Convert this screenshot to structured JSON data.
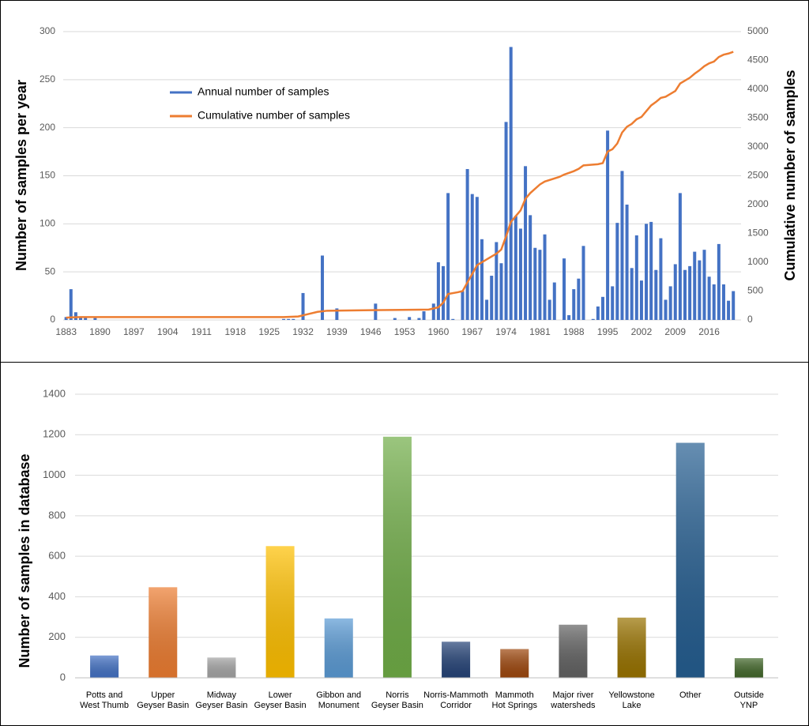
{
  "chart_data": [
    {
      "type": "bar",
      "legend": "upper left",
      "grid": true,
      "ylabel": "Number of samples per year",
      "y2label": "Cumulative number of samples",
      "xlim": [
        1882.4,
        2022.6
      ],
      "xticks": [
        1883,
        1890,
        1897,
        1904,
        1911,
        1918,
        1925,
        1932,
        1939,
        1946,
        1953,
        1960,
        1967,
        1974,
        1981,
        1988,
        1995,
        2002,
        2009,
        2016
      ],
      "ylim": [
        0,
        300
      ],
      "yticks": [
        0,
        50,
        100,
        150,
        200,
        250,
        300
      ],
      "y2lim": [
        0,
        5000
      ],
      "y2ticks": [
        0,
        500,
        1000,
        1500,
        2000,
        2500,
        3000,
        3500,
        4000,
        4500,
        5000
      ],
      "series": [
        {
          "name": "Annual number of samples",
          "type": "bar",
          "color": "#4472c4",
          "x": [
            1883,
            1884,
            1885,
            1886,
            1887,
            1889,
            1928,
            1929,
            1930,
            1932,
            1936,
            1939,
            1947,
            1951,
            1954,
            1956,
            1957,
            1959,
            1960,
            1961,
            1962,
            1963,
            1965,
            1966,
            1967,
            1968,
            1969,
            1970,
            1971,
            1972,
            1973,
            1974,
            1975,
            1976,
            1977,
            1978,
            1979,
            1980,
            1981,
            1982,
            1983,
            1984,
            1986,
            1987,
            1988,
            1989,
            1990,
            1992,
            1993,
            1994,
            1995,
            1996,
            1997,
            1998,
            1999,
            2000,
            2001,
            2002,
            2003,
            2004,
            2005,
            2006,
            2007,
            2008,
            2009,
            2010,
            2011,
            2012,
            2013,
            2014,
            2015,
            2016,
            2017,
            2018,
            2019,
            2020,
            2021
          ],
          "values": [
            3,
            32,
            8,
            3,
            3,
            2,
            1,
            1,
            1,
            28,
            67,
            12,
            17,
            2,
            3,
            2,
            9,
            17,
            60,
            56,
            132,
            1,
            30,
            157,
            131,
            128,
            84,
            21,
            46,
            81,
            59,
            206,
            284,
            108,
            95,
            160,
            109,
            75,
            73,
            89,
            21,
            39,
            64,
            5,
            32,
            43,
            77,
            1,
            14,
            24,
            197,
            35,
            101,
            155,
            120,
            54,
            88,
            41,
            100,
            102,
            52,
            85,
            21,
            35,
            58,
            132,
            52,
            56,
            71,
            62,
            73,
            45,
            37,
            79,
            37,
            20,
            30
          ]
        },
        {
          "name": "Cumulative number of samples",
          "type": "line",
          "color": "#ed7d31",
          "axis": "y2",
          "x": [
            1883,
            1884,
            1886,
            1890,
            1928,
            1931,
            1933,
            1935,
            1937,
            1946,
            1958,
            1960,
            1961,
            1962,
            1964,
            1965,
            1966,
            1967,
            1968,
            1970,
            1972,
            1973,
            1974,
            1975,
            1976,
            1977,
            1978,
            1979,
            1981,
            1982,
            1985,
            1986,
            1988,
            1989,
            1990,
            1993,
            1994,
            1995,
            1996,
            1997,
            1998,
            1999,
            2000,
            2001,
            2002,
            2003,
            2004,
            2005,
            2006,
            2007,
            2008,
            2009,
            2010,
            2012,
            2013,
            2014,
            2015,
            2016,
            2017,
            2018,
            2019,
            2020,
            2021
          ],
          "values": [
            40,
            45,
            50,
            50,
            50,
            60,
            100,
            140,
            160,
            170,
            180,
            220,
            300,
            450,
            480,
            500,
            650,
            800,
            950,
            1050,
            1150,
            1220,
            1450,
            1700,
            1800,
            1900,
            2100,
            2200,
            2350,
            2400,
            2480,
            2520,
            2580,
            2620,
            2680,
            2700,
            2720,
            2920,
            2960,
            3060,
            3250,
            3350,
            3400,
            3480,
            3520,
            3620,
            3720,
            3780,
            3850,
            3870,
            3920,
            3970,
            4100,
            4200,
            4270,
            4330,
            4400,
            4450,
            4480,
            4560,
            4600,
            4620,
            4650
          ]
        }
      ]
    },
    {
      "type": "bar",
      "grid": true,
      "ylabel": "Number of samples in database",
      "ylim": [
        0,
        1400
      ],
      "yticks": [
        0,
        200,
        400,
        600,
        800,
        1000,
        1200,
        1400
      ],
      "categories": [
        [
          "Potts and",
          "West Thumb"
        ],
        [
          "Upper",
          "Geyser Basin"
        ],
        [
          "Midway",
          "Geyser Basin"
        ],
        [
          "Lower",
          "Geyser Basin"
        ],
        [
          "Gibbon and",
          "Monument"
        ],
        [
          "Norris",
          "Geyser Basin"
        ],
        [
          "Norris-Mammoth",
          "Corridor"
        ],
        [
          "Mammoth",
          "Hot Springs"
        ],
        [
          "Major river",
          "watersheds"
        ],
        [
          "Yellowstone",
          "Lake"
        ],
        [
          "Other"
        ],
        [
          "Outside",
          "YNP"
        ]
      ],
      "values": [
        110,
        447,
        100,
        650,
        293,
        1190,
        178,
        142,
        262,
        297,
        1160,
        97
      ],
      "colors": [
        "#4472c4",
        "#ed7d31",
        "#a5a5a5",
        "#ffc000",
        "#5b9bd5",
        "#70ad47",
        "#264478",
        "#9e480e",
        "#636363",
        "#997300",
        "#255e91",
        "#43682b"
      ]
    }
  ]
}
